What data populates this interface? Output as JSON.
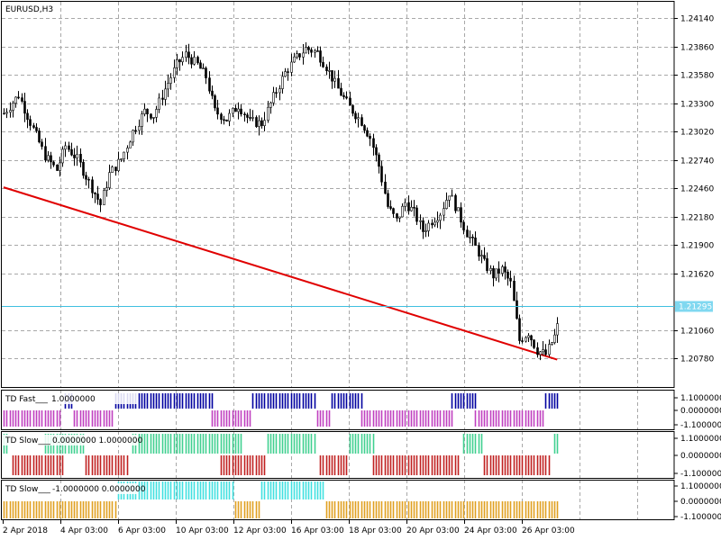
{
  "chart_data": {
    "type": "candlestick",
    "symbol_label": "EURUSD,H3",
    "price_axis": {
      "ticks": [
        "1.24140",
        "1.23860",
        "1.23580",
        "1.23300",
        "1.23020",
        "1.22740",
        "1.22460",
        "1.22180",
        "1.21900",
        "1.21620",
        "1.21060",
        "1.20780"
      ],
      "range": [
        1.205,
        1.243
      ]
    },
    "current_price": {
      "value": 1.21295,
      "label": "1.21295"
    },
    "time_axis": {
      "labels": [
        "2 Apr 2018",
        "4 Apr 03:00",
        "6 Apr 03:00",
        "10 Apr 03:00",
        "12 Apr 03:00",
        "16 Apr 03:00",
        "18 Apr 03:00",
        "20 Apr 03:00",
        "24 Apr 03:00",
        "26 Apr 03:00"
      ]
    },
    "price_path": [
      [
        0,
        1.232
      ],
      [
        5,
        1.2338
      ],
      [
        9,
        1.2311
      ],
      [
        14,
        1.2278
      ],
      [
        18,
        1.2264
      ],
      [
        21,
        1.2288
      ],
      [
        25,
        1.2275
      ],
      [
        29,
        1.2252
      ],
      [
        33,
        1.223
      ],
      [
        36,
        1.226
      ],
      [
        40,
        1.2275
      ],
      [
        44,
        1.2302
      ],
      [
        48,
        1.2322
      ],
      [
        51,
        1.2318
      ],
      [
        55,
        1.2344
      ],
      [
        59,
        1.2368
      ],
      [
        62,
        1.2378
      ],
      [
        66,
        1.2368
      ],
      [
        69,
        1.2356
      ],
      [
        72,
        1.2322
      ],
      [
        76,
        1.2314
      ],
      [
        80,
        1.2328
      ],
      [
        84,
        1.2312
      ],
      [
        88,
        1.231
      ],
      [
        92,
        1.2336
      ],
      [
        96,
        1.236
      ],
      [
        99,
        1.2372
      ],
      [
        103,
        1.2384
      ],
      [
        107,
        1.238
      ],
      [
        110,
        1.2366
      ],
      [
        114,
        1.2344
      ],
      [
        118,
        1.2326
      ],
      [
        122,
        1.2312
      ],
      [
        125,
        1.2296
      ],
      [
        128,
        1.2268
      ],
      [
        131,
        1.2228
      ],
      [
        134,
        1.2214
      ],
      [
        137,
        1.2232
      ],
      [
        140,
        1.2222
      ],
      [
        143,
        1.2204
      ],
      [
        146,
        1.2214
      ],
      [
        149,
        1.2222
      ],
      [
        152,
        1.2242
      ],
      [
        155,
        1.2222
      ],
      [
        158,
        1.2202
      ],
      [
        161,
        1.2188
      ],
      [
        164,
        1.2172
      ],
      [
        167,
        1.216
      ],
      [
        170,
        1.2166
      ],
      [
        173,
        1.2152
      ],
      [
        176,
        1.2096
      ],
      [
        179,
        1.2104
      ],
      [
        182,
        1.2086
      ],
      [
        185,
        1.2082
      ],
      [
        188,
        1.21
      ],
      [
        191,
        1.2129
      ]
    ],
    "trendline": {
      "color": "#e00000",
      "points": [
        [
          0,
          1.2247
        ],
        [
          189,
          1.2077
        ]
      ]
    },
    "indicators": [
      {
        "name": "TD Fast___",
        "value_text": "1.0000000",
        "ticks": [
          "1.1000000",
          "0.0000000",
          "-1.1000000"
        ],
        "up_color": "#0000a0",
        "down_color": "#c040c0",
        "up": [
          [
            21,
            23
          ],
          [
            38,
            71
          ],
          [
            85,
            106
          ],
          [
            112,
            122
          ],
          [
            153,
            161
          ],
          [
            185,
            189
          ]
        ],
        "down": [
          [
            0,
            19
          ],
          [
            24,
            37
          ],
          [
            71,
            84
          ],
          [
            107,
            111
          ],
          [
            122,
            153
          ],
          [
            161,
            184
          ]
        ]
      },
      {
        "name": "TD Slow___",
        "value_text": "0.0000000 1.0000000",
        "ticks": [
          "1.1000000",
          "0.0000000",
          "-1.1000000"
        ],
        "up_color": "#40d090",
        "down_color": "#c02020",
        "up": [
          [
            0,
            1
          ],
          [
            14,
            27
          ],
          [
            44,
            81
          ],
          [
            90,
            106
          ],
          [
            118,
            126
          ],
          [
            157,
            163
          ],
          [
            188,
            189
          ]
        ],
        "down": [
          [
            3,
            20
          ],
          [
            28,
            42
          ],
          [
            74,
            89
          ],
          [
            108,
            117
          ],
          [
            126,
            155
          ],
          [
            164,
            186
          ]
        ]
      },
      {
        "name": "TD Slow___",
        "value_text": "-1.0000000 0.0000000",
        "ticks": [
          "1.1000000",
          "0.0000000",
          "-1.1000000"
        ],
        "up_color": "#40e0e0",
        "down_color": "#e0a020",
        "up": [
          [
            39,
            78
          ],
          [
            88,
            109
          ]
        ],
        "down": [
          [
            0,
            38
          ],
          [
            79,
            87
          ],
          [
            110,
            189
          ]
        ]
      }
    ],
    "grid": true,
    "colors": {
      "background": "#ffffff",
      "grid": "#a8a8a8",
      "candles": "#000000",
      "current_price": "#40c0e0",
      "label_fill": "#80d8f0"
    }
  }
}
